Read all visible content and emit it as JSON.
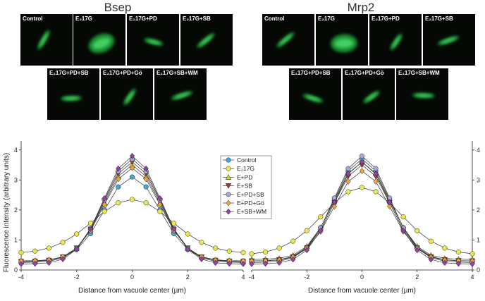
{
  "panels": [
    {
      "title": "Bsep",
      "images": [
        "Control",
        "E₂17G",
        "E₂17G+PD",
        "E₂17G+SB",
        "E₂17G+PD+SB",
        "E₂17G+PD+Gö",
        "E₂17G+SB+WM"
      ]
    },
    {
      "title": "Mrp2",
      "images": [
        "Control",
        "E₂17G",
        "E₂17G+PD",
        "E₂17G+SB",
        "E₂17G+PD+SB",
        "E₂17G+PD+Gö",
        "E₂17G+SB+WM"
      ]
    }
  ],
  "chart_data": [
    {
      "type": "line",
      "yaxis": "left",
      "ylabel": "Fluorescence intensity (arbitrary units)",
      "xlabel": "Distance from vacuole center (µm)",
      "xlim": [
        -4,
        4
      ],
      "ylim": [
        0,
        4.3
      ],
      "xticks": [
        -4,
        -2,
        0,
        2,
        4
      ],
      "yticks": [
        0,
        1,
        2,
        3,
        4
      ],
      "x": [
        -4,
        -3.5,
        -3,
        -2.5,
        -2,
        -1.5,
        -1,
        -0.5,
        0,
        0.5,
        1,
        1.5,
        2,
        2.5,
        3,
        3.5,
        4
      ],
      "series": [
        {
          "name": "Control",
          "color": "#3fa7d6",
          "marker": "circle",
          "values": [
            0.3,
            0.31,
            0.33,
            0.42,
            0.68,
            1.21,
            2.0,
            2.77,
            3.1,
            2.77,
            2.0,
            1.21,
            0.68,
            0.42,
            0.33,
            0.31,
            0.3
          ]
        },
        {
          "name": "E₂17G",
          "color": "#ecea4a",
          "marker": "circle",
          "values": [
            0.58,
            0.63,
            0.73,
            0.92,
            1.2,
            1.56,
            1.95,
            2.24,
            2.35,
            2.24,
            1.95,
            1.56,
            1.2,
            0.92,
            0.73,
            0.63,
            0.58
          ]
        },
        {
          "name": "E+PD",
          "color": "#c4d83c",
          "marker": "triangle-up",
          "values": [
            0.3,
            0.31,
            0.34,
            0.44,
            0.73,
            1.34,
            2.24,
            3.12,
            3.5,
            3.12,
            2.24,
            1.34,
            0.73,
            0.44,
            0.34,
            0.31,
            0.3
          ]
        },
        {
          "name": "E+SB",
          "color": "#b03232",
          "marker": "triangle-down",
          "values": [
            0.28,
            0.29,
            0.32,
            0.43,
            0.73,
            1.36,
            2.3,
            3.21,
            3.6,
            3.21,
            2.3,
            1.36,
            0.73,
            0.43,
            0.32,
            0.29,
            0.28
          ]
        },
        {
          "name": "E+PD+SB",
          "color": "#a8a8d8",
          "marker": "circle",
          "values": [
            0.25,
            0.26,
            0.29,
            0.4,
            0.72,
            1.37,
            2.34,
            3.29,
            3.7,
            3.29,
            2.34,
            1.37,
            0.72,
            0.4,
            0.29,
            0.26,
            0.25
          ]
        },
        {
          "name": "E+PD+Gö",
          "color": "#f2a443",
          "marker": "diamond",
          "values": [
            0.3,
            0.31,
            0.33,
            0.44,
            0.72,
            1.31,
            2.18,
            3.03,
            3.4,
            3.03,
            2.18,
            1.31,
            0.72,
            0.44,
            0.33,
            0.31,
            0.3
          ]
        },
        {
          "name": "E+SB+WM",
          "color": "#9442a4",
          "marker": "diamond",
          "values": [
            0.2,
            0.21,
            0.24,
            0.36,
            0.69,
            1.37,
            2.39,
            3.38,
            3.8,
            3.38,
            2.39,
            1.37,
            0.69,
            0.36,
            0.24,
            0.21,
            0.2
          ]
        }
      ]
    },
    {
      "type": "line",
      "yaxis": "right",
      "xlabel": "Distance from vacuole center (µm)",
      "xlim": [
        -4,
        4
      ],
      "ylim": [
        0,
        4.3
      ],
      "xticks": [
        -4,
        -2,
        0,
        2,
        4
      ],
      "yticks": [
        0,
        1,
        2,
        3,
        4
      ],
      "x": [
        -4,
        -3.5,
        -3,
        -2.5,
        -2,
        -1.5,
        -1,
        -0.5,
        0,
        0.5,
        1,
        1.5,
        2,
        2.5,
        3,
        3.5,
        4
      ],
      "series": [
        {
          "color": "#3fa7d6",
          "marker": "circle",
          "values": [
            0.3,
            0.31,
            0.34,
            0.45,
            0.76,
            1.41,
            2.36,
            3.3,
            3.7,
            3.3,
            2.36,
            1.41,
            0.76,
            0.45,
            0.34,
            0.31,
            0.3
          ]
        },
        {
          "color": "#ecea4a",
          "marker": "circle",
          "values": [
            0.54,
            0.6,
            0.73,
            0.96,
            1.31,
            1.77,
            2.24,
            2.61,
            2.75,
            2.61,
            2.24,
            1.77,
            1.31,
            0.96,
            0.73,
            0.6,
            0.54
          ]
        },
        {
          "color": "#c4d83c",
          "marker": "triangle-up",
          "values": [
            0.35,
            0.36,
            0.39,
            0.49,
            0.79,
            1.41,
            2.32,
            3.22,
            3.6,
            3.22,
            2.32,
            1.41,
            0.79,
            0.49,
            0.39,
            0.36,
            0.35
          ]
        },
        {
          "color": "#b03232",
          "marker": "triangle-down",
          "values": [
            0.3,
            0.31,
            0.34,
            0.44,
            0.73,
            1.34,
            2.24,
            3.12,
            3.5,
            3.12,
            2.24,
            1.34,
            0.73,
            0.44,
            0.34,
            0.31,
            0.3
          ]
        },
        {
          "color": "#a8a8d8",
          "marker": "circle",
          "values": [
            0.25,
            0.26,
            0.29,
            0.41,
            0.73,
            1.4,
            2.4,
            3.38,
            3.8,
            3.38,
            2.4,
            1.4,
            0.73,
            0.41,
            0.29,
            0.26,
            0.25
          ]
        },
        {
          "color": "#f2a443",
          "marker": "diamond",
          "values": [
            0.3,
            0.31,
            0.33,
            0.43,
            0.71,
            1.28,
            2.12,
            2.95,
            3.3,
            2.95,
            2.12,
            1.28,
            0.71,
            0.43,
            0.33,
            0.31,
            0.3
          ]
        },
        {
          "color": "#9442a4",
          "marker": "diamond",
          "values": [
            0.2,
            0.21,
            0.24,
            0.35,
            0.66,
            1.31,
            2.26,
            3.2,
            3.6,
            3.2,
            2.26,
            1.31,
            0.66,
            0.35,
            0.24,
            0.21,
            0.2
          ]
        }
      ]
    }
  ]
}
